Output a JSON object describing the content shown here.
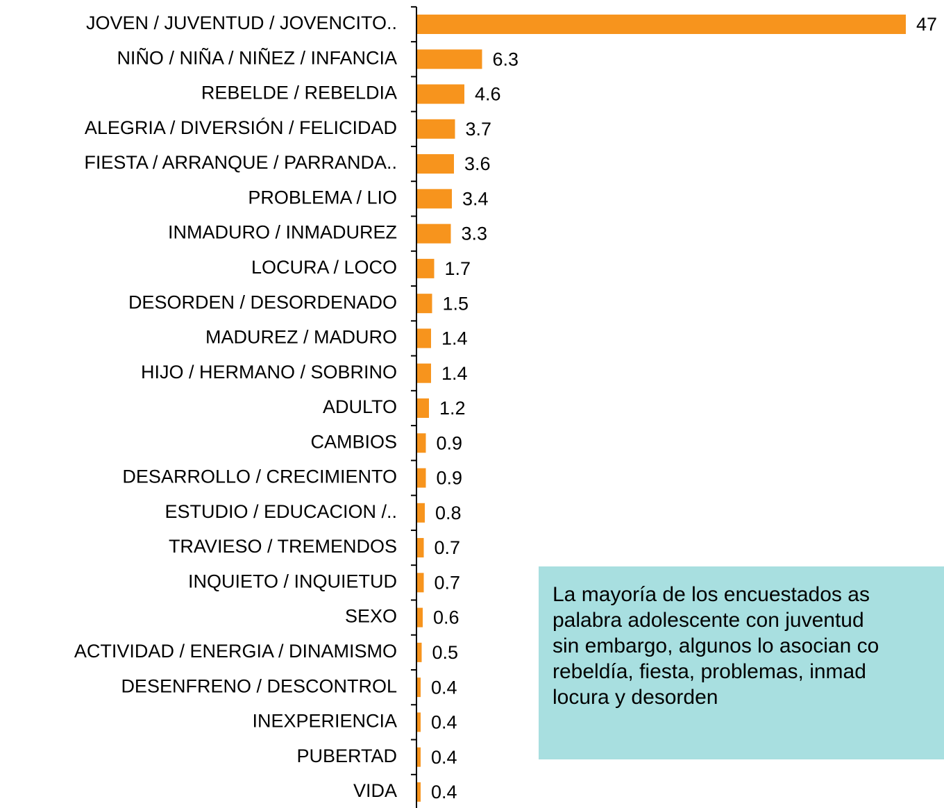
{
  "chart_data": {
    "type": "barh",
    "categories": [
      "JOVEN / JUVENTUD / JOVENCITO..",
      "NIÑO / NIÑA / NIÑEZ / INFANCIA",
      "REBELDE / REBELDIA",
      "ALEGRIA / DIVERSIÓN / FELICIDAD",
      "FIESTA / ARRANQUE / PARRANDA..",
      "PROBLEMA / LIO",
      "INMADURO / INMADUREZ",
      "LOCURA / LOCO",
      "DESORDEN / DESORDENADO",
      "MADUREZ / MADURO",
      "HIJO / HERMANO / SOBRINO",
      "ADULTO",
      "CAMBIOS",
      "DESARROLLO / CRECIMIENTO",
      "ESTUDIO / EDUCACION /..",
      "TRAVIESO / TREMENDOS",
      "INQUIETO / INQUIETUD",
      "SEXO",
      "ACTIVIDAD / ENERGIA / DINAMISMO",
      "DESENFRENO / DESCONTROL",
      "INEXPERIENCIA",
      "PUBERTAD",
      "VIDA"
    ],
    "values": [
      47,
      6.3,
      4.6,
      3.7,
      3.6,
      3.4,
      3.3,
      1.7,
      1.5,
      1.4,
      1.4,
      1.2,
      0.9,
      0.9,
      0.8,
      0.7,
      0.7,
      0.6,
      0.5,
      0.4,
      0.4,
      0.4,
      0.4
    ],
    "color": "#f7941d",
    "xlim": [
      0,
      47
    ]
  },
  "note": {
    "lines": [
      "La mayoría de los encuestados as",
      "palabra adolescente con juventud",
      "sin embargo, algunos lo asocian co",
      "rebeldía,  fiesta, problemas, inmad",
      "locura y desorden"
    ]
  }
}
